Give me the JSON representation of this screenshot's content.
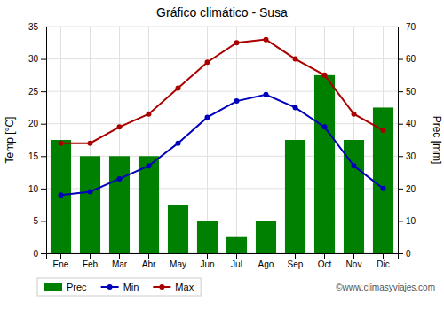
{
  "chart_data": {
    "type": "bar",
    "title": "Gráfico climático - Susa",
    "categories": [
      "Ene",
      "Feb",
      "Mar",
      "Abr",
      "May",
      "Jun",
      "Jul",
      "Ago",
      "Sep",
      "Oct",
      "Nov",
      "Dic"
    ],
    "series": [
      {
        "name": "Prec",
        "type": "bar",
        "axis": "y2",
        "color": "#008000",
        "values": [
          35,
          30,
          30,
          30,
          15,
          10,
          5,
          10,
          35,
          55,
          35,
          45
        ]
      },
      {
        "name": "Min",
        "type": "line",
        "color": "#0000BB",
        "marker": "circle",
        "values": [
          9.0,
          9.5,
          11.5,
          13.5,
          17.0,
          21.0,
          23.5,
          24.5,
          22.5,
          19.5,
          13.5,
          10.0
        ]
      },
      {
        "name": "Max",
        "type": "line",
        "color": "#AA0000",
        "marker": "circle",
        "values": [
          17.0,
          17.0,
          19.5,
          21.5,
          25.5,
          29.5,
          32.5,
          33.0,
          30.0,
          27.5,
          21.5,
          19.0
        ]
      }
    ],
    "ylabel": "Temp [°C]",
    "y2label": "Prec [mm]",
    "ylim": [
      0,
      35
    ],
    "yticks": [
      0,
      5,
      10,
      15,
      20,
      25,
      30,
      35
    ],
    "y2lim": [
      0,
      70
    ],
    "y2ticks": [
      0,
      10,
      20,
      30,
      40,
      50,
      60,
      70
    ],
    "grid": true,
    "legend": "lower left",
    "annotations": [
      "©www.climasyviajes.com"
    ]
  }
}
